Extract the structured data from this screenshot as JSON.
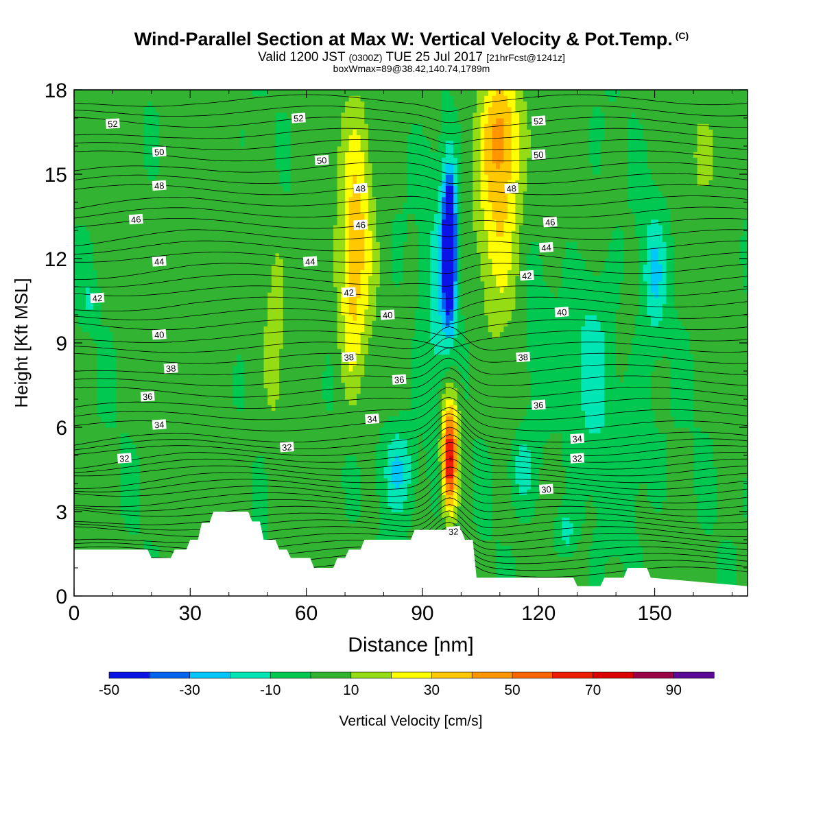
{
  "header": {
    "title": "Wind-Parallel Section at Max W: Vertical Velocity & Pot.Temp.",
    "copyright": "(C)",
    "subtitle_a": "Valid 1200 JST",
    "subtitle_b": "(0300Z)",
    "subtitle_c": "TUE 25 Jul 2017",
    "subtitle_d": "[21hrFcst@1241z]",
    "box_info": "boxWmax=89@38.42,140.74,1789m"
  },
  "colors": {
    "bins": [
      "#0a14e6",
      "#0064f0",
      "#00c8ff",
      "#00e6b4",
      "#00c850",
      "#32b432",
      "#96dc14",
      "#ffff00",
      "#ffc800",
      "#ff9600",
      "#ff6400",
      "#f01e00",
      "#dc0000",
      "#9b0046",
      "#5a0a96"
    ],
    "terrain": "#ffffff",
    "contour": "#000000"
  },
  "chart_data": {
    "type": "heatmap",
    "xlabel": "Distance [nm]",
    "ylabel": "Height [Kft MSL]",
    "xlim": [
      0,
      174
    ],
    "ylim": [
      0,
      18
    ],
    "xticks": [
      0,
      30,
      60,
      90,
      120,
      150
    ],
    "yticks": [
      0,
      3,
      6,
      9,
      12,
      15,
      18
    ],
    "colorbar": {
      "label": "Vertical Velocity [cm/s]",
      "levels": [
        -50,
        -40,
        -30,
        -20,
        -10,
        0,
        10,
        20,
        30,
        40,
        50,
        60,
        70,
        80,
        90,
        100
      ],
      "tick_labels": [
        "-50",
        "-30",
        "-10",
        "10",
        "30",
        "50",
        "70",
        "90"
      ]
    },
    "max_updraft": {
      "value": 89,
      "x": 97,
      "y": 5.0
    },
    "w_features": [
      {
        "kind": "updraft",
        "x": 97,
        "y": 4.8,
        "w_peak": 89
      },
      {
        "kind": "downdraft",
        "x": 97,
        "y": 12.5,
        "w_peak": -50
      },
      {
        "kind": "updraft",
        "x": 73,
        "y": 13,
        "w_peak": 35
      },
      {
        "kind": "updraft",
        "x": 110,
        "y": 14.5,
        "w_peak": 40
      },
      {
        "kind": "downdraft",
        "x": 85,
        "y": 4.5,
        "w_peak": -15
      },
      {
        "kind": "downdraft",
        "x": 150,
        "y": 11.5,
        "w_peak": -15
      },
      {
        "kind": "downdraft",
        "x": 133,
        "y": 8.5,
        "w_peak": -12
      },
      {
        "kind": "downdraft",
        "x": 115,
        "y": 4.5,
        "w_peak": -12
      }
    ],
    "terrain_kft": {
      "x": [
        0,
        19,
        20,
        25,
        26,
        29,
        30,
        32,
        33,
        35,
        36,
        45,
        46,
        48,
        49,
        52,
        53,
        55,
        56,
        61,
        62,
        67,
        68,
        70,
        71,
        74,
        75,
        87,
        88,
        100,
        101,
        103,
        104,
        129,
        130,
        136,
        137,
        142,
        143,
        148,
        149,
        174
      ],
      "y": [
        1.65,
        1.65,
        1.35,
        1.35,
        1.65,
        1.65,
        2.0,
        2.0,
        2.6,
        2.6,
        3.0,
        3.0,
        2.65,
        2.65,
        2.0,
        2.0,
        1.65,
        1.65,
        1.35,
        1.35,
        1.0,
        1.0,
        1.35,
        1.35,
        1.65,
        1.65,
        2.0,
        2.0,
        2.35,
        2.35,
        2.0,
        2.0,
        0.65,
        0.65,
        0.35,
        0.35,
        0.65,
        0.65,
        1.0,
        1.0,
        0.65,
        0.35
      ]
    },
    "theta_contours": {
      "levels": [
        30,
        32,
        34,
        36,
        38,
        40,
        42,
        44,
        46,
        48,
        50,
        52
      ],
      "labels": [
        {
          "text": "52",
          "x": 10,
          "y": 16.8
        },
        {
          "text": "52",
          "x": 58,
          "y": 17.0
        },
        {
          "text": "52",
          "x": 120,
          "y": 16.9
        },
        {
          "text": "50",
          "x": 22,
          "y": 15.8
        },
        {
          "text": "50",
          "x": 64,
          "y": 15.5
        },
        {
          "text": "50",
          "x": 120,
          "y": 15.7
        },
        {
          "text": "48",
          "x": 22,
          "y": 14.6
        },
        {
          "text": "48",
          "x": 74,
          "y": 14.5
        },
        {
          "text": "48",
          "x": 113,
          "y": 14.5
        },
        {
          "text": "46",
          "x": 16,
          "y": 13.4
        },
        {
          "text": "46",
          "x": 74,
          "y": 13.2
        },
        {
          "text": "46",
          "x": 123,
          "y": 13.3
        },
        {
          "text": "44",
          "x": 22,
          "y": 11.9
        },
        {
          "text": "44",
          "x": 61,
          "y": 11.9
        },
        {
          "text": "44",
          "x": 122,
          "y": 12.4
        },
        {
          "text": "42",
          "x": 6,
          "y": 10.6
        },
        {
          "text": "42",
          "x": 71,
          "y": 10.8
        },
        {
          "text": "42",
          "x": 117,
          "y": 11.4
        },
        {
          "text": "40",
          "x": 22,
          "y": 9.3
        },
        {
          "text": "40",
          "x": 81,
          "y": 10.0
        },
        {
          "text": "40",
          "x": 126,
          "y": 10.1
        },
        {
          "text": "38",
          "x": 25,
          "y": 8.1
        },
        {
          "text": "38",
          "x": 71,
          "y": 8.5
        },
        {
          "text": "38",
          "x": 116,
          "y": 8.5
        },
        {
          "text": "36",
          "x": 19,
          "y": 7.1
        },
        {
          "text": "36",
          "x": 84,
          "y": 7.7
        },
        {
          "text": "36",
          "x": 120,
          "y": 6.8
        },
        {
          "text": "34",
          "x": 22,
          "y": 6.1
        },
        {
          "text": "34",
          "x": 77,
          "y": 6.3
        },
        {
          "text": "34",
          "x": 130,
          "y": 5.6
        },
        {
          "text": "32",
          "x": 13,
          "y": 4.9
        },
        {
          "text": "32",
          "x": 55,
          "y": 5.3
        },
        {
          "text": "32",
          "x": 130,
          "y": 4.9
        },
        {
          "text": "30",
          "x": 122,
          "y": 3.8
        },
        {
          "text": "32",
          "x": 98,
          "y": 2.3
        }
      ]
    }
  }
}
